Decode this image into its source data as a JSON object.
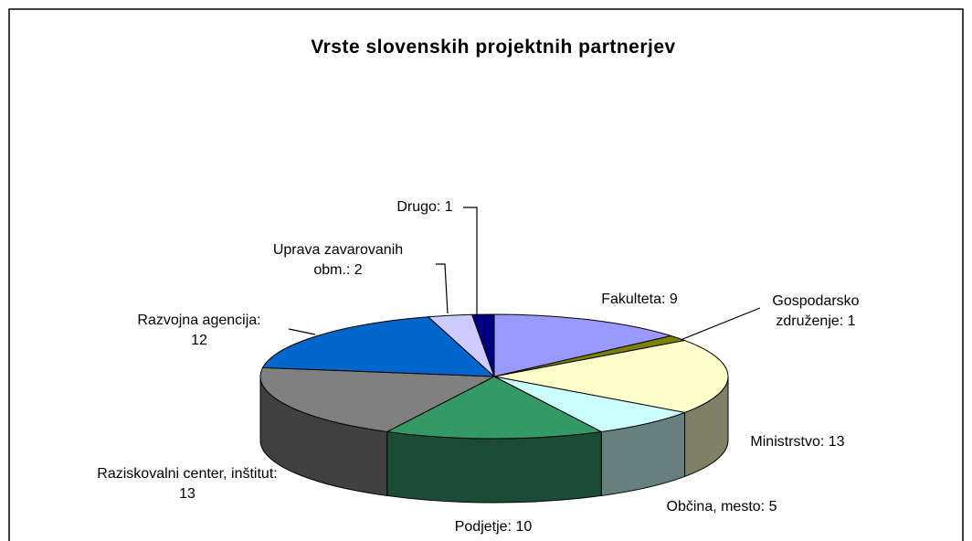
{
  "chart_data": {
    "type": "pie",
    "title": "Vrste slovenskih projektnih partnerjev",
    "values": [
      9,
      1,
      13,
      5,
      10,
      13,
      12,
      2,
      1
    ],
    "value_labels": [
      "Fakulteta: 9",
      "Gospodarsko združenje: 1",
      "Ministrstvo: 13",
      "Občina, mesto: 5",
      "Podjetje: 10",
      "Raziskovalni center, inštitut: 13",
      "Razvojna agencija: 12",
      "Uprava zavarovanih obm.: 2",
      "Drugo: 1"
    ],
    "colors": [
      "#9999ff",
      "#808000",
      "#ffffcc",
      "#ccffff",
      "#339966",
      "#808080",
      "#0066cc",
      "#ccccff",
      "#000080"
    ]
  }
}
